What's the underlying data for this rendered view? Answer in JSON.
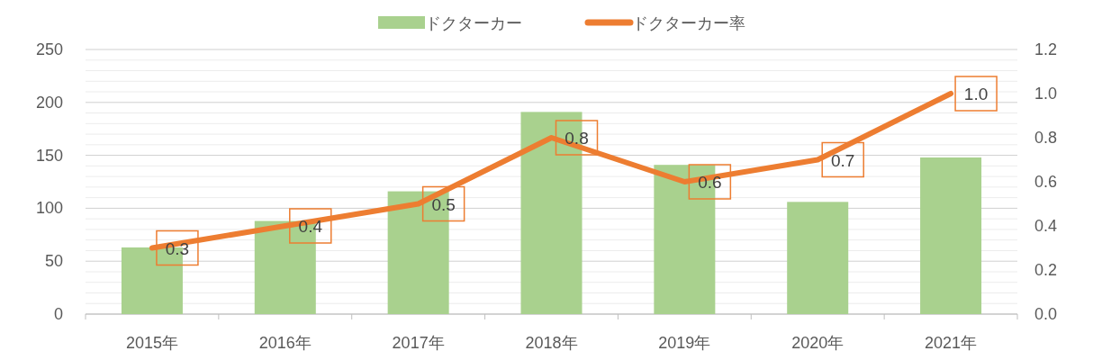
{
  "chart_data": {
    "type": "bar",
    "categories": [
      "2015年",
      "2016年",
      "2017年",
      "2018年",
      "2019年",
      "2020年",
      "2021年"
    ],
    "series": [
      {
        "name": "ドクターカー",
        "color": "#a9d18e",
        "values": [
          63,
          88,
          116,
          191,
          141,
          106,
          148
        ]
      },
      {
        "name": "ドクターカー率",
        "type": "line",
        "axis": "y2",
        "color": "#ed7d31",
        "values": [
          0.3,
          0.4,
          0.5,
          0.8,
          0.6,
          0.7,
          1.0
        ],
        "value_labels": [
          "0.3",
          "0.4",
          "0.5",
          "0.8",
          "0.6",
          "0.7",
          "1.0"
        ]
      }
    ],
    "ylim": [
      0,
      250
    ],
    "yticks": [
      0,
      {
        "value": 10,
        "label": null
      },
      {
        "value": 20,
        "label": null
      },
      {
        "value": 30,
        "label": null
      },
      {
        "value": 40,
        "label": null
      },
      50,
      {
        "value": 60,
        "label": null
      },
      {
        "value": 70,
        "label": null
      },
      {
        "value": 80,
        "label": null
      },
      {
        "value": 90,
        "label": null
      },
      100,
      {
        "value": 110,
        "label": null
      },
      {
        "value": 120,
        "label": null
      },
      {
        "value": 130,
        "label": null
      },
      {
        "value": 140,
        "label": null
      },
      150,
      {
        "value": 160,
        "label": null
      },
      {
        "value": 170,
        "label": null
      },
      {
        "value": 180,
        "label": null
      },
      {
        "value": 190,
        "label": null
      },
      200,
      {
        "value": 210,
        "label": null
      },
      {
        "value": 220,
        "label": null
      },
      {
        "value": 230,
        "label": null
      },
      {
        "value": 240,
        "label": null
      },
      250
    ],
    "y2lim": [
      0,
      1.2
    ],
    "y2ticks": [
      {
        "value": 0,
        "label": "0.0"
      },
      0.2,
      0.4,
      0.6,
      0.8,
      {
        "value": 1,
        "label": "1.0"
      },
      1.2
    ],
    "grid": "y",
    "legend": "top"
  }
}
